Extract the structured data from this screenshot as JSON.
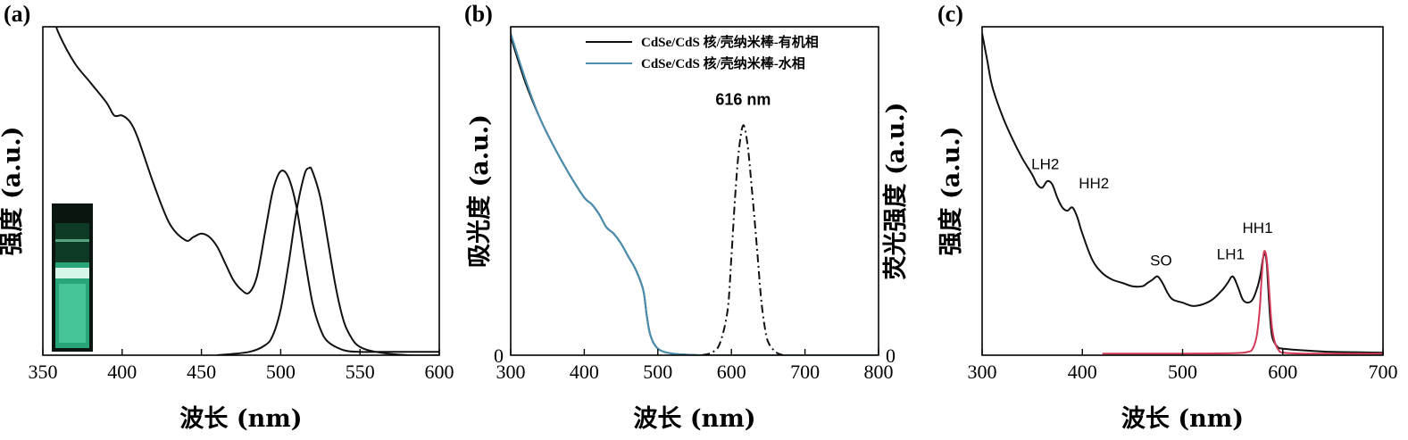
{
  "colors": {
    "black": "#111111",
    "blue": "#4a8fb0",
    "red": "#d03a56",
    "inset_green": "#2fbf8a"
  },
  "chart_data": [
    {
      "panel": "(a)",
      "type": "line",
      "xlabel": "波长 (nm)",
      "ylabel": "强度 (a.u.)",
      "xlim": [
        350,
        600
      ],
      "ylim": [
        0,
        1
      ],
      "xticks": [
        "350",
        "400",
        "450",
        "500",
        "550",
        "600"
      ],
      "yticks": [],
      "inset": "cuvette-photo-green-emission",
      "series": [
        {
          "style": "solid",
          "color": "#111111",
          "x": [
            355,
            360,
            370,
            380,
            390,
            395,
            400,
            405,
            410,
            420,
            430,
            440,
            445,
            450,
            455,
            460,
            465,
            470,
            475,
            480,
            485,
            490,
            495,
            500,
            505,
            510,
            515,
            520,
            525,
            530,
            540,
            550,
            560,
            580,
            600
          ],
          "y": [
            1.05,
            0.98,
            0.89,
            0.83,
            0.77,
            0.73,
            0.73,
            0.71,
            0.66,
            0.52,
            0.4,
            0.35,
            0.36,
            0.37,
            0.36,
            0.33,
            0.28,
            0.23,
            0.2,
            0.19,
            0.24,
            0.37,
            0.5,
            0.56,
            0.54,
            0.45,
            0.3,
            0.16,
            0.08,
            0.04,
            0.015,
            0.01,
            0.01,
            0.01,
            0.01
          ]
        },
        {
          "style": "solid",
          "color": "#111111",
          "x": [
            460,
            480,
            490,
            495,
            500,
            505,
            510,
            515,
            518,
            520,
            525,
            530,
            535,
            540,
            545,
            550,
            560,
            580,
            600
          ],
          "y": [
            0.0,
            0.01,
            0.03,
            0.06,
            0.14,
            0.28,
            0.44,
            0.55,
            0.57,
            0.56,
            0.48,
            0.34,
            0.2,
            0.1,
            0.05,
            0.025,
            0.01,
            0.0,
            0.0
          ]
        }
      ]
    },
    {
      "panel": "(b)",
      "type": "line",
      "xlabel": "波长 (nm)",
      "ylabel": "吸光度 (a.u.)",
      "ylabel_right": "荧光强度 (a.u.)",
      "xlim": [
        300,
        800
      ],
      "ylim": [
        0,
        1
      ],
      "xticks": [
        "300",
        "400",
        "500",
        "600",
        "700",
        "800"
      ],
      "yticks_left": [
        "0"
      ],
      "yticks_right": [
        "0"
      ],
      "legend": [
        "CdSe/CdS 核/壳纳米棒-有机相",
        "CdSe/CdS 核/壳纳米棒-水相"
      ],
      "legend_position": "top-right",
      "annotations": [
        {
          "text": "616 nm",
          "x": 616,
          "y": 0.74
        }
      ],
      "series": [
        {
          "name": "CdSe/CdS 核/壳纳米棒-有机相",
          "style": "solid",
          "color": "#111111",
          "x": [
            300,
            320,
            340,
            360,
            380,
            400,
            410,
            420,
            430,
            440,
            450,
            460,
            470,
            480,
            485,
            490,
            500,
            520,
            560,
            600,
            650,
            700,
            800
          ],
          "y": [
            0.97,
            0.83,
            0.72,
            0.63,
            0.55,
            0.48,
            0.46,
            0.43,
            0.39,
            0.37,
            0.34,
            0.3,
            0.26,
            0.2,
            0.12,
            0.06,
            0.02,
            0.005,
            0.0,
            0.0,
            0.0,
            0.0,
            0.0
          ]
        },
        {
          "name": "CdSe/CdS 核/壳纳米棒-水相",
          "style": "solid",
          "color": "#4a8fb0",
          "x": [
            300,
            320,
            340,
            360,
            380,
            400,
            410,
            420,
            430,
            440,
            450,
            460,
            470,
            480,
            485,
            490,
            500,
            520,
            560,
            600,
            650,
            700,
            800
          ],
          "y": [
            0.98,
            0.84,
            0.72,
            0.63,
            0.55,
            0.48,
            0.46,
            0.43,
            0.39,
            0.37,
            0.34,
            0.3,
            0.26,
            0.2,
            0.12,
            0.06,
            0.02,
            0.005,
            0.0,
            0.0,
            0.0,
            0.0,
            0.0
          ]
        },
        {
          "style": "dash-dot",
          "color": "#111111",
          "x": [
            560,
            575,
            585,
            595,
            600,
            605,
            610,
            616,
            622,
            628,
            635,
            640,
            645,
            650,
            660,
            670
          ],
          "y": [
            0.0,
            0.01,
            0.04,
            0.14,
            0.3,
            0.48,
            0.62,
            0.7,
            0.64,
            0.5,
            0.32,
            0.18,
            0.09,
            0.04,
            0.01,
            0.0
          ]
        }
      ]
    },
    {
      "panel": "(c)",
      "type": "line",
      "xlabel": "波长 (nm)",
      "ylabel": "强度 (a.u.)",
      "xlim": [
        300,
        700
      ],
      "ylim": [
        0,
        1
      ],
      "xticks": [
        "300",
        "400",
        "500",
        "600",
        "700"
      ],
      "yticks": [],
      "annotations": [
        {
          "text": "LH2",
          "x": 363,
          "y": 0.54
        },
        {
          "text": "HH2",
          "x": 392,
          "y": 0.47
        },
        {
          "text": "SO",
          "x": 475,
          "y": 0.24
        },
        {
          "text": "LH1",
          "x": 548,
          "y": 0.26
        },
        {
          "text": "HH1",
          "x": 582,
          "y": 0.34
        }
      ],
      "series": [
        {
          "style": "solid",
          "color": "#111111",
          "x": [
            300,
            305,
            310,
            320,
            330,
            340,
            350,
            355,
            360,
            365,
            370,
            375,
            380,
            385,
            390,
            395,
            400,
            410,
            420,
            430,
            440,
            450,
            460,
            465,
            470,
            475,
            480,
            485,
            490,
            500,
            510,
            520,
            530,
            540,
            545,
            550,
            555,
            560,
            565,
            570,
            575,
            578,
            580,
            582,
            584,
            586,
            588,
            590,
            595,
            600,
            620,
            650,
            700
          ],
          "y": [
            0.98,
            0.9,
            0.82,
            0.73,
            0.66,
            0.6,
            0.55,
            0.52,
            0.51,
            0.53,
            0.52,
            0.48,
            0.45,
            0.44,
            0.45,
            0.42,
            0.37,
            0.29,
            0.25,
            0.23,
            0.22,
            0.21,
            0.21,
            0.22,
            0.23,
            0.24,
            0.22,
            0.19,
            0.17,
            0.16,
            0.15,
            0.155,
            0.17,
            0.2,
            0.22,
            0.24,
            0.21,
            0.17,
            0.16,
            0.17,
            0.21,
            0.25,
            0.29,
            0.31,
            0.28,
            0.18,
            0.09,
            0.05,
            0.025,
            0.02,
            0.015,
            0.01,
            0.008
          ]
        },
        {
          "style": "solid",
          "color": "#d03a56",
          "x": [
            420,
            500,
            550,
            565,
            570,
            574,
            577,
            579,
            581,
            583,
            585,
            587,
            589,
            592,
            596,
            600,
            620,
            650,
            700
          ],
          "y": [
            0.005,
            0.005,
            0.006,
            0.01,
            0.02,
            0.06,
            0.14,
            0.24,
            0.31,
            0.31,
            0.26,
            0.17,
            0.09,
            0.04,
            0.015,
            0.008,
            0.005,
            0.005,
            0.005
          ]
        }
      ]
    }
  ]
}
